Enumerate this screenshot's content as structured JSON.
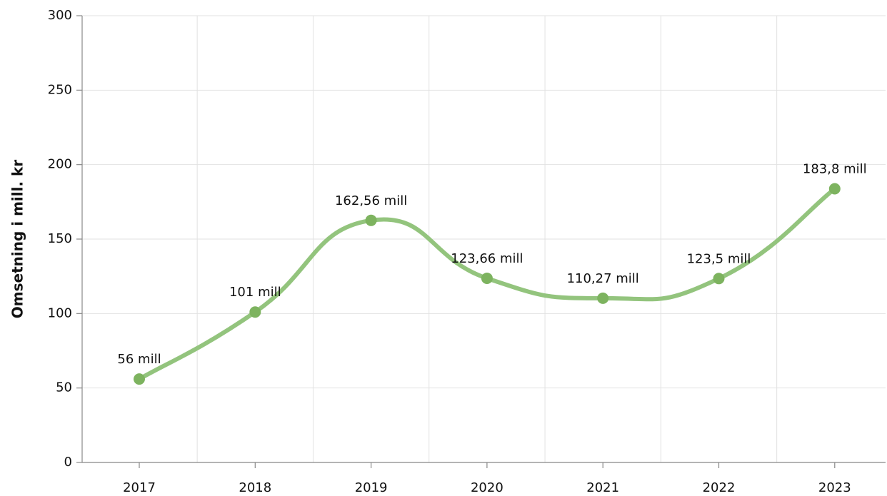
{
  "chart_data": {
    "type": "line",
    "y_label": "Omsetning i mill. kr",
    "categories": [
      "2017",
      "2018",
      "2019",
      "2020",
      "2021",
      "2022",
      "2023"
    ],
    "series": [
      {
        "name": "Omsetning",
        "color": "#93c47d",
        "values": [
          56,
          101,
          162.56,
          123.66,
          110.27,
          123.5,
          183.8
        ],
        "value_labels": [
          "56 mill",
          "101 mill",
          "162,56 mill",
          "123,66 mill",
          "110,27 mill",
          "123,5 mill",
          "183,8 mill"
        ]
      }
    ],
    "ylim": [
      0,
      300
    ],
    "yticks": [
      0,
      50,
      100,
      150,
      200,
      250,
      300
    ],
    "grid": true
  }
}
